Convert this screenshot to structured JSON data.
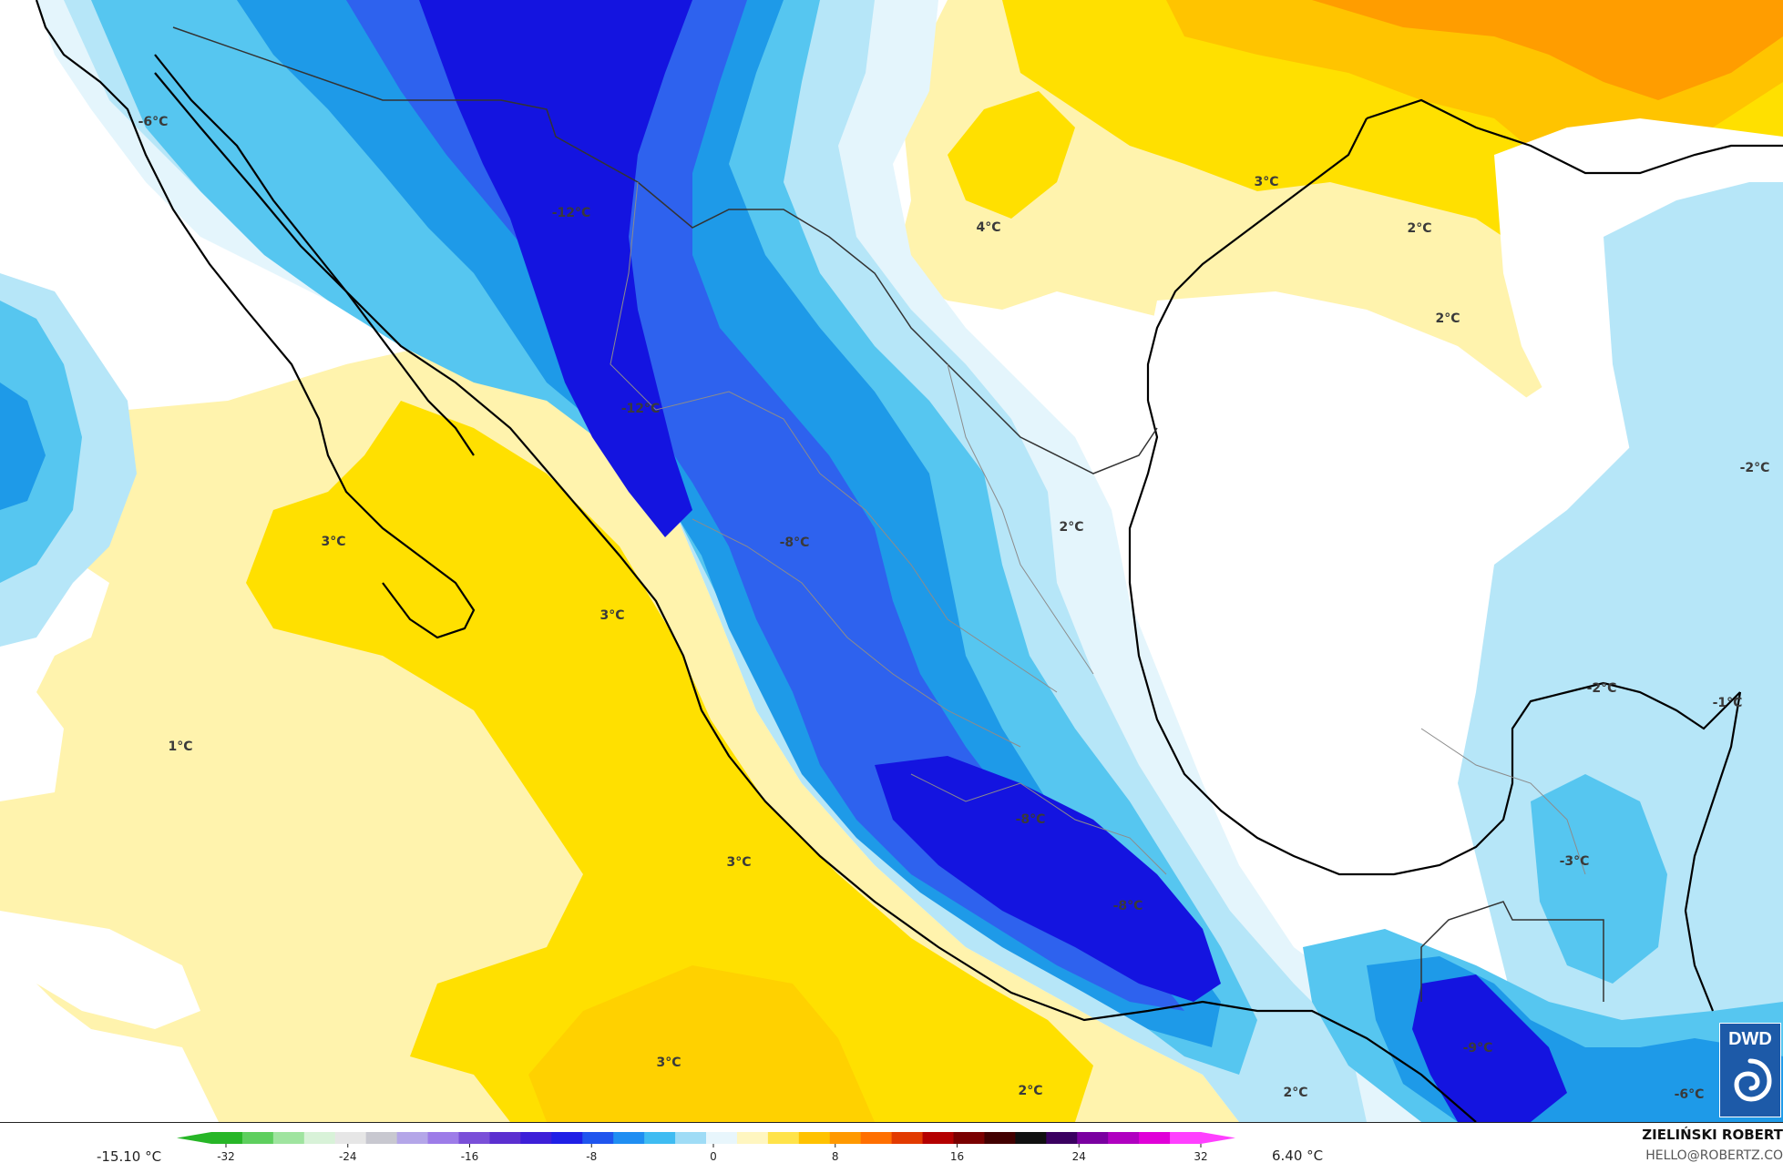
{
  "map": {
    "temperature_labels": [
      {
        "text": "-6°C"
      },
      {
        "text": "-12°C"
      },
      {
        "text": "-12°C"
      },
      {
        "text": "-8°C"
      },
      {
        "text": "-8°C"
      },
      {
        "text": "-8°C"
      },
      {
        "text": "-9°C"
      },
      {
        "text": "-6°C"
      },
      {
        "text": "-3°C"
      },
      {
        "text": "-2°C"
      },
      {
        "text": "-2°C"
      },
      {
        "text": "-1°C"
      },
      {
        "text": "1°C"
      },
      {
        "text": "2°C"
      },
      {
        "text": "2°C"
      },
      {
        "text": "2°C"
      },
      {
        "text": "2°C"
      },
      {
        "text": "2°C"
      },
      {
        "text": "3°C"
      },
      {
        "text": "3°C"
      },
      {
        "text": "3°C"
      },
      {
        "text": "3°C"
      },
      {
        "text": "3°C"
      },
      {
        "text": "4°C"
      }
    ],
    "colors": {
      "deep_blue": "#1414e0",
      "blue": "#2e62ee",
      "mid_blue": "#1e9ae8",
      "light_blue": "#56c6f0",
      "pale_blue": "#b6e6f8",
      "very_pale_blue": "#e4f5fc",
      "white": "#ffffff",
      "pale_yellow": "#fff3ad",
      "yellow": "#ffe000",
      "gold": "#ffc400",
      "orange": "#ff9d00"
    }
  },
  "legend": {
    "min_label": "-15.10 °C",
    "max_label": "6.40 °C",
    "ticks": [
      "-32",
      "-24",
      "-16",
      "-8",
      "0",
      "8",
      "16",
      "24",
      "32"
    ],
    "colorbar_colors": [
      "#27b627",
      "#5ecf5e",
      "#9fe49f",
      "#d8f2d8",
      "#e6e6e6",
      "#c8c8d0",
      "#b4a6e8",
      "#9d7ce8",
      "#7a4fd8",
      "#5b2fd0",
      "#3d1fd8",
      "#1f1fe6",
      "#1f55ee",
      "#1f8ef2",
      "#3fbcf2",
      "#9fdcf6",
      "#e8f6fc",
      "#fff6c0",
      "#ffe34a",
      "#ffc200",
      "#ff9900",
      "#ff6f00",
      "#e23a00",
      "#b40000",
      "#7a0000",
      "#420000",
      "#101010",
      "#3a0060",
      "#7a00a0",
      "#b000c0",
      "#e000d8",
      "#ff40ff"
    ]
  },
  "author": {
    "name": "ZIELIŃSKI ROBERT",
    "email": "HELLO@ROBERTZ.CO"
  },
  "logo": {
    "text": "DWD",
    "icon": "dwd-swirl-icon"
  }
}
